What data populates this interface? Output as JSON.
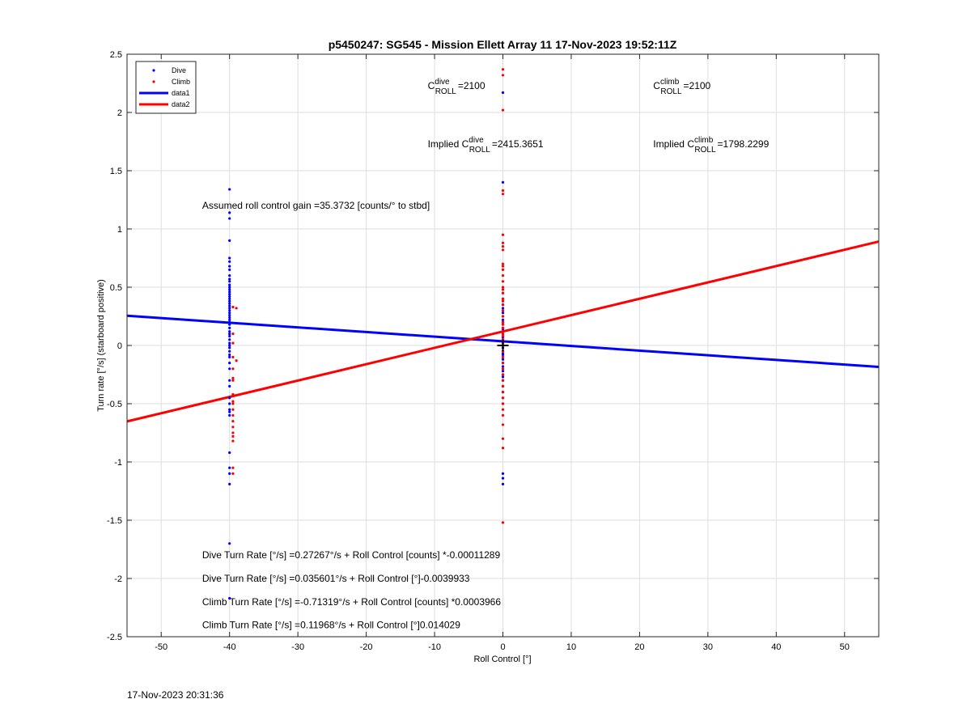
{
  "chart_data": {
    "type": "scatter",
    "title": "p5450247: SG545 - Mission Ellett Array 11 17-Nov-2023 19:52:11Z",
    "xlabel": "Roll Control [°]",
    "ylabel": "Turn rate [°/s] (starboard positive)",
    "xlim": [
      -55,
      55
    ],
    "ylim": [
      -2.5,
      2.5
    ],
    "xticks": [
      -50,
      -40,
      -30,
      -20,
      -10,
      0,
      10,
      20,
      30,
      40,
      50
    ],
    "yticks": [
      -2.5,
      -2,
      -1.5,
      -1,
      -0.5,
      0,
      0.5,
      1,
      1.5,
      2,
      2.5
    ],
    "xtick_labels": [
      "-50",
      "-40",
      "-30",
      "-20",
      "-10",
      "0",
      "10",
      "20",
      "30",
      "40",
      "50"
    ],
    "ytick_labels": [
      "-2.5",
      "-2",
      "-1.5",
      "-1",
      "-0.5",
      "0",
      "0.5",
      "1",
      "1.5",
      "2",
      "2.5"
    ],
    "grid": true,
    "legend_position": "top-left",
    "legend": [
      {
        "label": "Dive",
        "kind": "marker",
        "color": "#0000ff"
      },
      {
        "label": "Climb",
        "kind": "marker",
        "color": "#ff0000"
      },
      {
        "label": "data1",
        "kind": "line",
        "color": "#0000ff"
      },
      {
        "label": "data2",
        "kind": "line",
        "color": "#ff0000"
      }
    ],
    "series": [
      {
        "name": "Dive",
        "kind": "scatter",
        "color": "#0000ff",
        "x": [
          -40,
          -40,
          -40,
          -40,
          -40,
          -40,
          -40,
          -40,
          -40,
          -40,
          -40,
          -40,
          -40,
          -40,
          -40,
          -40,
          -40,
          -40,
          -40,
          -40,
          -40,
          -40,
          -40,
          -40,
          -40,
          -40,
          -40,
          -40,
          -40,
          -40,
          -40,
          -40,
          -40,
          -40,
          -40,
          -40,
          -40,
          -40,
          -40,
          -40,
          -40,
          -40,
          -40,
          -40,
          -40,
          -40,
          -40,
          -40,
          -40,
          -40,
          -40,
          -40,
          -40,
          -40,
          -40,
          0,
          0,
          0,
          0,
          0,
          0,
          0,
          0,
          0,
          0,
          0,
          0,
          0,
          0,
          0,
          0,
          0,
          0,
          0,
          0,
          0,
          0,
          0,
          0,
          0,
          0,
          0,
          0,
          0,
          0,
          0,
          0,
          0,
          0,
          0,
          0,
          0,
          0,
          0,
          0,
          0
        ],
        "y": [
          1.34,
          1.14,
          1.09,
          0.9,
          0.75,
          0.72,
          0.68,
          0.65,
          0.6,
          0.57,
          0.55,
          0.52,
          0.5,
          0.48,
          0.46,
          0.44,
          0.42,
          0.4,
          0.38,
          0.36,
          0.34,
          0.32,
          0.3,
          0.28,
          0.26,
          0.24,
          0.22,
          0.2,
          0.18,
          0.15,
          0.12,
          0.1,
          0.08,
          0.05,
          0.02,
          0,
          -0.02,
          -0.05,
          -0.08,
          -0.1,
          -0.15,
          -0.2,
          -0.3,
          -0.35,
          -0.45,
          -0.5,
          -0.55,
          -0.57,
          -0.6,
          -0.92,
          -1.05,
          -1.1,
          -1.19,
          -1.7,
          -2.17,
          2.17,
          1.4,
          0.35,
          0.32,
          0.3,
          0.28,
          0.25,
          0.22,
          0.2,
          0.18,
          0.15,
          0.12,
          0.1,
          0.08,
          0.05,
          0.03,
          0,
          -0.02,
          -0.05,
          -0.08,
          -0.1,
          -0.12,
          -0.15,
          -0.18,
          -0.2,
          -0.25,
          -0.3,
          -0.35,
          -0.4,
          -0.45,
          -0.5,
          -1.1,
          -1.14,
          -1.19,
          0.45,
          0.4,
          -0.27,
          -0.22,
          -0.07,
          0.14,
          0.07
        ]
      },
      {
        "name": "Climb",
        "kind": "scatter",
        "color": "#ff0000",
        "x": [
          -39.5,
          -39,
          -39.5,
          -39.5,
          -39.5,
          -39,
          -39.5,
          -39.5,
          -39.5,
          -39.5,
          -39.5,
          -39.5,
          -39.5,
          -39.5,
          -39.5,
          -39.5,
          -39.5,
          -39.5,
          -39.5,
          -39.5,
          -39.5,
          0,
          0,
          0,
          0,
          0,
          0,
          0,
          0,
          0,
          0,
          0,
          0,
          0,
          0,
          0,
          0,
          0,
          0,
          0,
          0,
          0,
          0,
          0,
          0,
          0,
          0,
          0,
          0,
          0,
          0,
          0,
          0,
          0,
          0,
          0,
          0,
          0,
          0,
          0,
          0,
          0,
          0,
          0,
          0,
          0,
          0,
          0
        ],
        "y": [
          0.33,
          0.32,
          0.1,
          0.02,
          -0.1,
          -0.13,
          -0.2,
          -0.28,
          -0.3,
          -0.42,
          -0.48,
          -0.5,
          -0.55,
          -0.6,
          -0.65,
          -0.7,
          -0.75,
          -0.78,
          -0.82,
          -1.05,
          -1.1,
          2.37,
          2.32,
          2.02,
          1.33,
          1.3,
          0.95,
          0.88,
          0.82,
          0.7,
          0.68,
          0.65,
          0.6,
          0.55,
          0.5,
          0.48,
          0.45,
          0.4,
          0.38,
          0.35,
          0.3,
          0.25,
          0.2,
          0.18,
          0.15,
          0.12,
          0.1,
          0.08,
          0.05,
          0.02,
          0,
          -0.05,
          -0.1,
          -0.15,
          -0.2,
          -0.25,
          -0.3,
          -0.35,
          -0.4,
          -0.45,
          -0.5,
          -0.55,
          -0.6,
          -0.68,
          -0.8,
          -0.88,
          -1.52,
          0.85
        ]
      },
      {
        "name": "data1",
        "kind": "line",
        "color": "#0000ff",
        "x": [
          -55,
          55
        ],
        "y": [
          0.255,
          -0.184
        ]
      },
      {
        "name": "data2",
        "kind": "line",
        "color": "#ff0000",
        "x": [
          -55,
          55
        ],
        "y": [
          -0.652,
          0.892
        ]
      }
    ],
    "center_marker": {
      "x": 0,
      "y": 0,
      "symbol": "+"
    },
    "annotations": {
      "c_roll_dive": {
        "prefix": "C",
        "sup": "dive",
        "sub": "ROLL",
        "value": "=2100",
        "x": -11,
        "y": 2.2
      },
      "c_roll_climb": {
        "prefix": "C",
        "sup": "climb",
        "sub": "ROLL",
        "value": "=2100",
        "x": 22,
        "y": 2.2
      },
      "implied_dive": {
        "prefix": "Implied C",
        "sup": "dive",
        "sub": "ROLL",
        "value": "=2415.3651",
        "x": -11,
        "y": 1.7
      },
      "implied_climb": {
        "prefix": "Implied C",
        "sup": "climb",
        "sub": "ROLL",
        "value": "=1798.2299",
        "x": 22,
        "y": 1.7
      },
      "roll_gain": {
        "text": "Assumed roll control gain =35.3732 [counts/° to stbd]",
        "x": -44,
        "y": 1.2
      },
      "dive_counts": {
        "text": "Dive Turn Rate [°/s] =0.27267°/s + Roll Control [counts] *-0.00011289",
        "x": -44,
        "y": -1.8
      },
      "dive_deg": {
        "text": "Dive Turn Rate [°/s] =0.035601°/s + Roll Control [°]-0.0039933",
        "x": -44,
        "y": -2.0
      },
      "climb_counts": {
        "text": "Climb Turn Rate [°/s] =-0.71319°/s + Roll Control [counts] *0.0003966",
        "x": -44,
        "y": -2.2
      },
      "climb_deg": {
        "text": "Climb Turn Rate [°/s] =0.11968°/s + Roll Control [°]0.014029",
        "x": -44,
        "y": -2.4
      }
    }
  },
  "footer": {
    "timestamp": "17-Nov-2023 20:31:36"
  }
}
